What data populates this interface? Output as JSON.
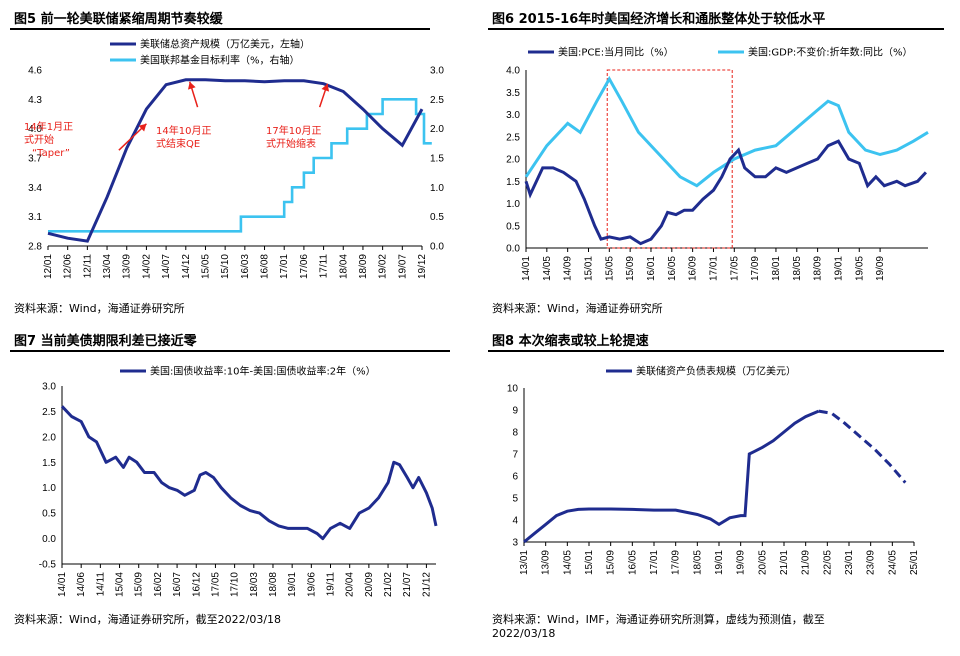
{
  "panels": {
    "p5": {
      "title": "图5  前一轮美联储紧缩周期节奏较缓",
      "source": "资料来源：Wind，海通证券研究所"
    },
    "p6": {
      "title": "图6  2015-16年时美国经济增长和通胀整体处于较低水平",
      "source": "资料来源：Wind，海通证券研究所"
    },
    "p7": {
      "title": "图7  当前美债期限利差已接近零",
      "source": "资料来源：Wind，海通证券研究所，截至2022/03/18"
    },
    "p8": {
      "title": "图8  本次缩表或较上轮提速",
      "source": "资料来源：Wind，IMF，海通证券研究所测算，虚线为预测值，截至",
      "source2": "2022/03/18"
    }
  },
  "colors": {
    "navy": "#1f2c8f",
    "cyan": "#3cc3f0",
    "red": "#e8211a"
  },
  "chart_data": [
    {
      "type": "line",
      "id": "c5",
      "title": "",
      "x": [
        "12/01",
        "12/06",
        "12/11",
        "13/04",
        "13/09",
        "14/02",
        "14/07",
        "14/12",
        "15/05",
        "15/10",
        "16/03",
        "16/08",
        "17/01",
        "17/06",
        "17/11",
        "18/04",
        "18/09",
        "19/02",
        "19/07",
        "19/12"
      ],
      "ylim_left": [
        2.8,
        4.6
      ],
      "yticks_left": [
        "2.8",
        "3.1",
        "3.4",
        "3.7",
        "4.0",
        "4.3",
        "4.6"
      ],
      "ylim_right": [
        0.0,
        3.0
      ],
      "yticks_right": [
        "0.0",
        "0.5",
        "1.0",
        "1.5",
        "2.0",
        "2.5",
        "3.0"
      ],
      "series": [
        {
          "name": "美联储总资产规模（万亿美元，左轴）",
          "axis": "left",
          "color": "navy",
          "points": [
            [
              0,
              2.93
            ],
            [
              1,
              2.88
            ],
            [
              2,
              2.85
            ],
            [
              3,
              3.3
            ],
            [
              4,
              3.8
            ],
            [
              5,
              4.2
            ],
            [
              6,
              4.45
            ],
            [
              7,
              4.5
            ],
            [
              8,
              4.5
            ],
            [
              9,
              4.49
            ],
            [
              10,
              4.49
            ],
            [
              11,
              4.48
            ],
            [
              12,
              4.49
            ],
            [
              13,
              4.49
            ],
            [
              14,
              4.46
            ],
            [
              15,
              4.38
            ],
            [
              16,
              4.2
            ],
            [
              17,
              4.0
            ],
            [
              18,
              3.83
            ],
            [
              19,
              4.2
            ]
          ]
        },
        {
          "name": "美国联邦基金目标利率（%，右轴）",
          "axis": "right",
          "color": "cyan",
          "step": true,
          "points": [
            [
              0,
              0.25
            ],
            [
              9.8,
              0.25
            ],
            [
              9.8,
              0.5
            ],
            [
              12.0,
              0.5
            ],
            [
              12.0,
              0.75
            ],
            [
              12.4,
              0.75
            ],
            [
              12.4,
              1.0
            ],
            [
              13.0,
              1.0
            ],
            [
              13.0,
              1.25
            ],
            [
              13.5,
              1.25
            ],
            [
              13.5,
              1.5
            ],
            [
              14.4,
              1.5
            ],
            [
              14.4,
              1.75
            ],
            [
              15.2,
              1.75
            ],
            [
              15.2,
              2.0
            ],
            [
              16.2,
              2.0
            ],
            [
              16.2,
              2.25
            ],
            [
              17.0,
              2.25
            ],
            [
              17.0,
              2.5
            ],
            [
              18.7,
              2.5
            ],
            [
              18.7,
              2.25
            ],
            [
              19.1,
              2.25
            ],
            [
              19.1,
              1.75
            ],
            [
              19.5,
              1.75
            ]
          ]
        }
      ],
      "annotations": [
        {
          "lines": [
            "14年1月正",
            "式开始",
            "“Taper”"
          ],
          "ax": 3.6,
          "ay": 3.78,
          "tx": 5.0,
          "ty": 4.05
        },
        {
          "lines": [
            "14年10月正",
            "式结束QE"
          ],
          "ax": 7.6,
          "ay": 4.22,
          "tx": 7.2,
          "ty": 4.48
        },
        {
          "lines": [
            "17年10月正",
            "式开始缩表"
          ],
          "ax": 13.8,
          "ay": 4.22,
          "tx": 14.2,
          "ty": 4.46
        }
      ]
    },
    {
      "type": "line",
      "id": "c6",
      "title": "",
      "x": [
        "14/01",
        "14/05",
        "14/09",
        "15/01",
        "15/05",
        "15/09",
        "16/01",
        "16/05",
        "16/09",
        "17/01",
        "17/05",
        "17/09",
        "18/01",
        "18/05",
        "18/09",
        "19/01",
        "19/05",
        "19/09"
      ],
      "ylim": [
        0.0,
        4.0
      ],
      "yticks": [
        "0.0",
        "0.5",
        "1.0",
        "1.5",
        "2.0",
        "2.5",
        "3.0",
        "3.5",
        "4.0"
      ],
      "highlight": {
        "from": 3.9,
        "to": 9.9
      },
      "series": [
        {
          "name": "美国:PCE:当月同比（%）",
          "color": "navy",
          "points": [
            [
              0,
              1.5
            ],
            [
              0.2,
              1.2
            ],
            [
              0.8,
              1.8
            ],
            [
              1.3,
              1.8
            ],
            [
              1.8,
              1.7
            ],
            [
              2.4,
              1.5
            ],
            [
              2.8,
              1.1
            ],
            [
              3.3,
              0.5
            ],
            [
              3.6,
              0.2
            ],
            [
              4.0,
              0.25
            ],
            [
              4.5,
              0.2
            ],
            [
              5.0,
              0.25
            ],
            [
              5.5,
              0.1
            ],
            [
              6.0,
              0.2
            ],
            [
              6.5,
              0.5
            ],
            [
              6.8,
              0.8
            ],
            [
              7.2,
              0.75
            ],
            [
              7.6,
              0.85
            ],
            [
              8.0,
              0.85
            ],
            [
              8.5,
              1.1
            ],
            [
              9.0,
              1.3
            ],
            [
              9.4,
              1.6
            ],
            [
              9.8,
              2.0
            ],
            [
              10.2,
              2.2
            ],
            [
              10.5,
              1.8
            ],
            [
              11.0,
              1.6
            ],
            [
              11.5,
              1.6
            ],
            [
              12.0,
              1.8
            ],
            [
              12.5,
              1.7
            ],
            [
              13.0,
              1.8
            ],
            [
              13.5,
              1.9
            ],
            [
              14.0,
              2.0
            ],
            [
              14.5,
              2.3
            ],
            [
              15.0,
              2.4
            ],
            [
              15.5,
              2.0
            ],
            [
              16.0,
              1.9
            ],
            [
              16.4,
              1.4
            ],
            [
              16.8,
              1.6
            ],
            [
              17.2,
              1.4
            ],
            [
              17.8,
              1.5
            ],
            [
              18.2,
              1.4
            ],
            [
              18.8,
              1.5
            ],
            [
              19.2,
              1.7
            ]
          ]
        },
        {
          "name": "美国:GDP:不变价:折年数:同比（%）",
          "color": "cyan",
          "points": [
            [
              0,
              1.6
            ],
            [
              1.0,
              2.3
            ],
            [
              2.0,
              2.8
            ],
            [
              2.6,
              2.6
            ],
            [
              3.4,
              3.3
            ],
            [
              4.0,
              3.8
            ],
            [
              4.6,
              3.3
            ],
            [
              5.4,
              2.6
            ],
            [
              6.4,
              2.1
            ],
            [
              7.4,
              1.6
            ],
            [
              8.2,
              1.4
            ],
            [
              9.0,
              1.7
            ],
            [
              10.0,
              2.0
            ],
            [
              11.0,
              2.2
            ],
            [
              12.0,
              2.3
            ],
            [
              13.0,
              2.7
            ],
            [
              14.0,
              3.1
            ],
            [
              14.5,
              3.3
            ],
            [
              15.0,
              3.2
            ],
            [
              15.5,
              2.6
            ],
            [
              16.3,
              2.2
            ],
            [
              17.0,
              2.1
            ],
            [
              17.8,
              2.2
            ],
            [
              18.6,
              2.4
            ],
            [
              19.3,
              2.6
            ]
          ]
        }
      ]
    },
    {
      "type": "line",
      "id": "c7",
      "title": "",
      "x": [
        "14/01",
        "14/06",
        "14/11",
        "15/04",
        "15/09",
        "16/02",
        "16/07",
        "16/12",
        "17/05",
        "17/10",
        "18/03",
        "18/08",
        "19/01",
        "19/06",
        "19/11",
        "20/04",
        "20/09",
        "21/02",
        "21/07",
        "21/12"
      ],
      "ylim": [
        -0.5,
        3.0
      ],
      "yticks": [
        "-0.5",
        "0.0",
        "0.5",
        "1.0",
        "1.5",
        "2.0",
        "2.5",
        "3.0"
      ],
      "series": [
        {
          "name": "美国:国债收益率:10年-美国:国债收益率:2年（%）",
          "color": "navy",
          "points": [
            [
              0,
              2.6
            ],
            [
              0.5,
              2.4
            ],
            [
              1.0,
              2.3
            ],
            [
              1.4,
              2.0
            ],
            [
              1.8,
              1.9
            ],
            [
              2.3,
              1.5
            ],
            [
              2.8,
              1.6
            ],
            [
              3.2,
              1.4
            ],
            [
              3.5,
              1.6
            ],
            [
              3.9,
              1.5
            ],
            [
              4.3,
              1.3
            ],
            [
              4.8,
              1.3
            ],
            [
              5.2,
              1.1
            ],
            [
              5.6,
              1.0
            ],
            [
              6.0,
              0.95
            ],
            [
              6.4,
              0.85
            ],
            [
              6.9,
              0.95
            ],
            [
              7.2,
              1.25
            ],
            [
              7.5,
              1.3
            ],
            [
              7.9,
              1.2
            ],
            [
              8.3,
              1.0
            ],
            [
              8.8,
              0.8
            ],
            [
              9.3,
              0.65
            ],
            [
              9.8,
              0.55
            ],
            [
              10.3,
              0.5
            ],
            [
              10.8,
              0.35
            ],
            [
              11.3,
              0.25
            ],
            [
              11.8,
              0.2
            ],
            [
              12.3,
              0.2
            ],
            [
              12.8,
              0.2
            ],
            [
              13.3,
              0.1
            ],
            [
              13.6,
              0.0
            ],
            [
              14.0,
              0.2
            ],
            [
              14.5,
              0.3
            ],
            [
              15.0,
              0.2
            ],
            [
              15.5,
              0.5
            ],
            [
              16.0,
              0.6
            ],
            [
              16.5,
              0.8
            ],
            [
              17.0,
              1.1
            ],
            [
              17.3,
              1.5
            ],
            [
              17.6,
              1.45
            ],
            [
              18.0,
              1.2
            ],
            [
              18.3,
              1.0
            ],
            [
              18.6,
              1.2
            ],
            [
              19.0,
              0.9
            ],
            [
              19.3,
              0.6
            ],
            [
              19.5,
              0.25
            ]
          ]
        }
      ]
    },
    {
      "type": "line",
      "id": "c8",
      "title": "",
      "x": [
        "13/01",
        "13/09",
        "14/05",
        "15/01",
        "15/09",
        "16/05",
        "17/01",
        "17/09",
        "18/05",
        "19/01",
        "19/09",
        "20/05",
        "21/01",
        "21/09",
        "22/05",
        "23/01",
        "23/09",
        "24/05",
        "25/01"
      ],
      "ylim": [
        3,
        10
      ],
      "yticks": [
        "3",
        "4",
        "5",
        "6",
        "7",
        "8",
        "9",
        "10"
      ],
      "series": [
        {
          "name": "美联储资产负债表规模（万亿美元）",
          "color": "navy",
          "points": [
            [
              0,
              3.0
            ],
            [
              0.5,
              3.4
            ],
            [
              1.0,
              3.8
            ],
            [
              1.5,
              4.2
            ],
            [
              2.0,
              4.4
            ],
            [
              2.5,
              4.48
            ],
            [
              3,
              4.5
            ],
            [
              4,
              4.5
            ],
            [
              5,
              4.48
            ],
            [
              6,
              4.45
            ],
            [
              7,
              4.45
            ],
            [
              8,
              4.25
            ],
            [
              8.6,
              4.05
            ],
            [
              9.0,
              3.8
            ],
            [
              9.5,
              4.1
            ],
            [
              10.0,
              4.2
            ],
            [
              10.2,
              4.2
            ],
            [
              10.4,
              7.0
            ],
            [
              10.6,
              7.1
            ],
            [
              11.0,
              7.3
            ],
            [
              11.5,
              7.6
            ],
            [
              12,
              8.0
            ],
            [
              12.5,
              8.4
            ],
            [
              13,
              8.7
            ],
            [
              13.6,
              8.95
            ]
          ]
        },
        {
          "name": "forecast",
          "color": "navy",
          "dashed": true,
          "points": [
            [
              13.6,
              8.95
            ],
            [
              14.2,
              8.85
            ],
            [
              14.8,
              8.4
            ],
            [
              15.5,
              7.8
            ],
            [
              16.2,
              7.2
            ],
            [
              16.9,
              6.5
            ],
            [
              17.6,
              5.7
            ]
          ]
        }
      ]
    }
  ]
}
